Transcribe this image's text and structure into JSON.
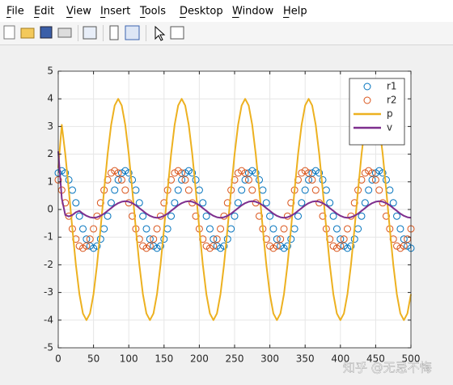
{
  "menu": [
    "File",
    "Edit",
    "View",
    "Insert",
    "Tools",
    "Desktop",
    "Window",
    "Help"
  ],
  "watermark": "知乎 @无忌不悔",
  "chart_data": {
    "type": "line",
    "x": [
      0,
      5,
      10,
      15,
      20,
      25,
      30,
      35,
      40,
      45,
      50,
      55,
      60,
      65,
      70,
      75,
      80,
      85,
      90,
      95,
      100,
      105,
      110,
      115,
      120,
      125,
      130,
      135,
      140,
      145,
      150,
      155,
      160,
      165,
      170,
      175,
      180,
      185,
      190,
      195,
      200,
      205,
      210,
      215,
      220,
      225,
      230,
      235,
      240,
      245,
      250,
      255,
      260,
      265,
      270,
      275,
      280,
      285,
      290,
      295,
      300,
      305,
      310,
      315,
      320,
      325,
      330,
      335,
      340,
      345,
      350,
      355,
      360,
      365,
      370,
      375,
      380,
      385,
      390,
      395,
      400,
      405,
      410,
      415,
      420,
      425,
      430,
      435,
      440,
      445,
      450,
      455,
      460,
      465,
      470,
      475,
      480,
      485,
      490,
      495,
      500
    ],
    "series": [
      {
        "name": "r1",
        "color": "#0072BD",
        "mode": "markers",
        "values": [
          1.32,
          1.4,
          1.32,
          1.07,
          0.7,
          0.24,
          -0.24,
          -0.7,
          -1.07,
          -1.32,
          -1.4,
          -1.32,
          -1.07,
          -0.7,
          -0.24,
          0.24,
          0.7,
          1.07,
          1.32,
          1.4,
          1.32,
          1.07,
          0.7,
          0.24,
          -0.24,
          -0.7,
          -1.07,
          -1.32,
          -1.4,
          -1.32,
          -1.07,
          -0.7,
          -0.24,
          0.24,
          0.7,
          1.07,
          1.32,
          1.4,
          1.32,
          1.07,
          0.7,
          0.24,
          -0.24,
          -0.7,
          -1.07,
          -1.32,
          -1.4,
          -1.32,
          -1.07,
          -0.7,
          -0.24,
          0.24,
          0.7,
          1.07,
          1.32,
          1.4,
          1.32,
          1.07,
          0.7,
          0.24,
          -0.24,
          -0.7,
          -1.07,
          -1.32,
          -1.4,
          -1.32,
          -1.07,
          -0.7,
          -0.24,
          0.24,
          0.7,
          1.07,
          1.32,
          1.4,
          1.32,
          1.07,
          0.7,
          0.24,
          -0.24,
          -0.7,
          -1.07,
          -1.32,
          -1.4,
          -1.32,
          -1.07,
          -0.7,
          -0.24,
          0.24,
          0.7,
          1.07,
          1.32,
          1.4,
          1.32,
          1.07,
          0.7,
          0.24,
          -0.24,
          -0.7,
          -1.07,
          -1.32,
          -1.4
        ]
      },
      {
        "name": "r2",
        "color": "#D95319",
        "mode": "markers",
        "values": [
          1.07,
          0.7,
          0.24,
          -0.24,
          -0.7,
          -1.07,
          -1.32,
          -1.4,
          -1.32,
          -1.07,
          -0.7,
          -0.24,
          0.24,
          0.7,
          1.07,
          1.32,
          1.4,
          1.32,
          1.07,
          0.7,
          0.24,
          -0.24,
          -0.7,
          -1.07,
          -1.32,
          -1.4,
          -1.32,
          -1.07,
          -0.7,
          -0.24,
          0.24,
          0.7,
          1.07,
          1.32,
          1.4,
          1.32,
          1.07,
          0.7,
          0.24,
          -0.24,
          -0.7,
          -1.07,
          -1.32,
          -1.4,
          -1.32,
          -1.07,
          -0.7,
          -0.24,
          0.24,
          0.7,
          1.07,
          1.32,
          1.4,
          1.32,
          1.07,
          0.7,
          0.24,
          -0.24,
          -0.7,
          -1.07,
          -1.32,
          -1.4,
          -1.32,
          -1.07,
          -0.7,
          -0.24,
          0.24,
          0.7,
          1.07,
          1.32,
          1.4,
          1.32,
          1.07,
          0.7,
          0.24,
          -0.24,
          -0.7,
          -1.07,
          -1.32,
          -1.4,
          -1.32,
          -1.07,
          -0.7,
          -0.24,
          0.24,
          0.7,
          1.07,
          1.32,
          1.4,
          1.32,
          1.07,
          0.7,
          0.24,
          -0.24,
          -0.7,
          -1.07,
          -1.32,
          -1.4,
          -1.32,
          -1.07,
          -0.7
        ]
      },
      {
        "name": "p",
        "color": "#EDB120",
        "mode": "lines",
        "values": [
          1.5,
          3.06,
          2,
          0.69,
          -0.69,
          -2,
          -3.06,
          -3.76,
          -4,
          -3.76,
          -3.06,
          -2,
          -0.69,
          0.69,
          2,
          3.06,
          3.76,
          4,
          3.76,
          3.06,
          2,
          0.69,
          -0.69,
          -2,
          -3.06,
          -3.76,
          -4,
          -3.76,
          -3.06,
          -2,
          -0.69,
          0.69,
          2,
          3.06,
          3.76,
          4,
          3.76,
          3.06,
          2,
          0.69,
          -0.69,
          -2,
          -3.06,
          -3.76,
          -4,
          -3.76,
          -3.06,
          -2,
          -0.69,
          0.69,
          2,
          3.06,
          3.76,
          4,
          3.76,
          3.06,
          2,
          0.69,
          -0.69,
          -2,
          -3.06,
          -3.76,
          -4,
          -3.76,
          -3.06,
          -2,
          -0.69,
          0.69,
          2,
          3.06,
          3.76,
          4,
          3.76,
          3.06,
          2,
          0.69,
          -0.69,
          -2,
          -3.06,
          -3.76,
          -4,
          -3.76,
          -3.06,
          -2,
          -0.69,
          0.69,
          2,
          3.06,
          3.76,
          4,
          3.76,
          3.06,
          2,
          0.69,
          -0.69,
          -2,
          -3.06,
          -3.76,
          -4,
          -3.76,
          -3.06
        ]
      },
      {
        "name": "v",
        "color": "#7E2F8E",
        "mode": "lines",
        "values": [
          2.1,
          0.4,
          -0.2,
          -0.25,
          -0.2,
          -0.1,
          -0.05,
          -0.15,
          -0.23,
          -0.28,
          -0.3,
          -0.28,
          -0.23,
          -0.15,
          -0.05,
          0.05,
          0.15,
          0.23,
          0.28,
          0.3,
          0.28,
          0.23,
          0.15,
          0.05,
          -0.05,
          -0.15,
          -0.23,
          -0.28,
          -0.3,
          -0.28,
          -0.23,
          -0.15,
          -0.05,
          0.05,
          0.15,
          0.23,
          0.28,
          0.3,
          0.28,
          0.23,
          0.15,
          0.05,
          -0.05,
          -0.15,
          -0.23,
          -0.28,
          -0.3,
          -0.28,
          -0.23,
          -0.15,
          -0.05,
          0.05,
          0.15,
          0.23,
          0.28,
          0.3,
          0.28,
          0.23,
          0.15,
          0.05,
          -0.05,
          -0.15,
          -0.23,
          -0.28,
          -0.3,
          -0.28,
          -0.23,
          -0.15,
          -0.05,
          0.05,
          0.15,
          0.23,
          0.28,
          0.3,
          0.28,
          0.23,
          0.15,
          0.05,
          -0.05,
          -0.15,
          -0.23,
          -0.28,
          -0.3,
          -0.28,
          -0.23,
          -0.15,
          -0.05,
          0.05,
          0.15,
          0.23,
          0.28,
          0.3,
          0.28,
          0.23,
          0.15,
          0.05,
          -0.05,
          -0.15,
          -0.23,
          -0.28,
          -0.3
        ]
      }
    ],
    "xlim": [
      0,
      500
    ],
    "xticks": [
      0,
      50,
      100,
      150,
      200,
      250,
      300,
      350,
      400,
      450,
      500
    ],
    "ylim": [
      -5,
      5
    ],
    "yticks": [
      -5,
      -4,
      -3,
      -2,
      -1,
      0,
      1,
      2,
      3,
      4,
      5
    ],
    "grid": true,
    "legend": "northeast"
  }
}
